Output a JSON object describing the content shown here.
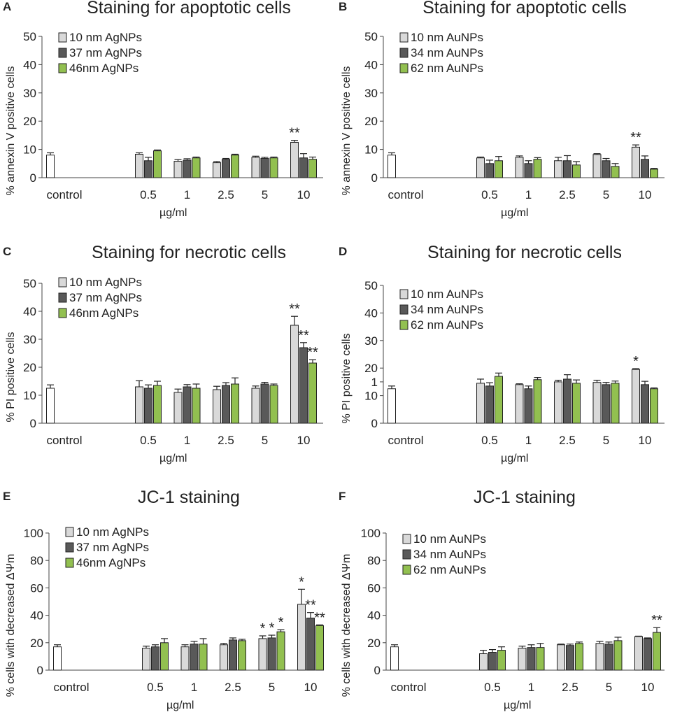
{
  "colors": {
    "control": "#ffffff",
    "series": [
      "#d9d9d9",
      "#595959",
      "#92c050"
    ],
    "outline": "#222222"
  },
  "chart_data": [
    {
      "panel": "A",
      "type": "bar",
      "title": "Staining for apoptotic cells",
      "ylabel": "% annexin V positive cells",
      "xlabel": "µg/ml",
      "ylim": [
        0,
        50
      ],
      "yticks": [
        0,
        10,
        20,
        30,
        40,
        50
      ],
      "control_label": "control",
      "control": {
        "value": 8.0,
        "err": 0.8
      },
      "categories": [
        "0.5",
        "1",
        "2.5",
        "5",
        "10"
      ],
      "legend_position": "top-left",
      "series": [
        {
          "name": "10 nm AgNPs",
          "values": [
            8.3,
            5.8,
            5.3,
            7.2,
            12.5
          ],
          "errors": [
            0.5,
            0.6,
            0.4,
            0.4,
            0.7
          ],
          "marks": [
            "",
            "",
            "",
            "",
            "**"
          ]
        },
        {
          "name": "37 nm AgNPs",
          "values": [
            6.0,
            6.2,
            6.5,
            6.8,
            7.0
          ],
          "errors": [
            1.2,
            0.5,
            0.3,
            0.4,
            1.5
          ],
          "marks": [
            "",
            "",
            "",
            "",
            ""
          ]
        },
        {
          "name": "46nm AgNPs",
          "values": [
            9.5,
            7.0,
            8.0,
            7.0,
            6.5
          ],
          "errors": [
            0.3,
            0.3,
            0.3,
            0.3,
            0.8
          ],
          "marks": [
            "",
            "",
            "",
            "",
            ""
          ]
        }
      ]
    },
    {
      "panel": "B",
      "type": "bar",
      "title": "Staining for apoptotic cells",
      "ylabel": "% annexin V positive cells",
      "xlabel": "µg/ml",
      "ylim": [
        0,
        50
      ],
      "yticks": [
        0,
        10,
        20,
        30,
        40,
        50
      ],
      "control_label": "control",
      "control": {
        "value": 8.0,
        "err": 0.8
      },
      "categories": [
        "0.5",
        "1",
        "2.5",
        "5",
        "10"
      ],
      "legend_position": "top-left",
      "series": [
        {
          "name": "10 nm AuNPs",
          "values": [
            7.0,
            7.2,
            6.0,
            8.2,
            10.8
          ],
          "errors": [
            0.3,
            0.5,
            1.2,
            0.3,
            0.8
          ],
          "marks": [
            "",
            "",
            "",
            "",
            "**"
          ]
        },
        {
          "name": "34 nm AuNPs",
          "values": [
            5.0,
            5.0,
            6.0,
            6.0,
            6.5
          ],
          "errors": [
            1.2,
            1.0,
            1.8,
            0.8,
            1.2
          ],
          "marks": [
            "",
            "",
            "",
            "",
            ""
          ]
        },
        {
          "name": "62 nm AuNPs",
          "values": [
            6.0,
            6.5,
            4.5,
            4.0,
            3.0
          ],
          "errors": [
            1.5,
            0.6,
            1.2,
            1.0,
            0.3
          ],
          "marks": [
            "",
            "",
            "",
            "",
            ""
          ]
        }
      ]
    },
    {
      "panel": "C",
      "type": "bar",
      "title": "Staining for necrotic cells",
      "ylabel": "% PI positive cells",
      "xlabel": "µg/ml",
      "ylim": [
        0,
        50
      ],
      "yticks": [
        0,
        10,
        20,
        30,
        40,
        50
      ],
      "control_label": "control",
      "control": {
        "value": 12.5,
        "err": 1.2
      },
      "categories": [
        "0.5",
        "1",
        "2.5",
        "5",
        "10"
      ],
      "legend_position": "top-left",
      "series": [
        {
          "name": "10 nm AgNPs",
          "values": [
            13.0,
            11.0,
            12.0,
            12.5,
            35.0
          ],
          "errors": [
            2.2,
            1.2,
            1.2,
            0.8,
            3.2
          ],
          "marks": [
            "",
            "",
            "",
            "",
            "**"
          ]
        },
        {
          "name": "37 nm AgNPs",
          "values": [
            12.5,
            13.0,
            13.5,
            14.0,
            27.0
          ],
          "errors": [
            1.2,
            0.8,
            1.0,
            0.6,
            1.8
          ],
          "marks": [
            "",
            "",
            "",
            "",
            "**"
          ]
        },
        {
          "name": "46nm AgNPs",
          "values": [
            13.5,
            12.5,
            14.0,
            13.5,
            21.5
          ],
          "errors": [
            1.5,
            1.5,
            2.2,
            0.5,
            1.2
          ],
          "marks": [
            "",
            "",
            "",
            "",
            "**"
          ]
        }
      ]
    },
    {
      "panel": "D",
      "type": "bar",
      "title": "Staining for necrotic cells",
      "ylabel": "% PI positive cells",
      "xlabel": "µg/ml",
      "ylim": [
        0,
        50
      ],
      "yticks": [
        0,
        10,
        20,
        30,
        40,
        50
      ],
      "ytick_labels": [
        "0",
        "10",
        "1",
        "20",
        "30",
        "40",
        "50"
      ],
      "ytick_values": [
        0,
        10,
        15,
        20,
        30,
        40,
        50
      ],
      "control_label": "control",
      "control": {
        "value": 12.5,
        "err": 1.0
      },
      "categories": [
        "0.5",
        "1",
        "2.5",
        "5",
        "10"
      ],
      "legend_position": "top-left",
      "series": [
        {
          "name": "10 nm AuNPs",
          "values": [
            14.5,
            14.0,
            15.0,
            14.8,
            19.5
          ],
          "errors": [
            1.5,
            0.3,
            0.6,
            0.8,
            0.3
          ],
          "marks": [
            "",
            "",
            "",
            "",
            "*"
          ]
        },
        {
          "name": "34 nm AuNPs",
          "values": [
            13.5,
            12.5,
            16.0,
            14.0,
            14.0
          ],
          "errors": [
            1.2,
            1.0,
            1.6,
            0.8,
            1.2
          ],
          "marks": [
            "",
            "",
            "",
            "",
            ""
          ]
        },
        {
          "name": "62 nm AuNPs",
          "values": [
            17.0,
            15.8,
            14.5,
            14.5,
            12.5
          ],
          "errors": [
            1.2,
            0.8,
            1.2,
            0.8,
            0.3
          ],
          "marks": [
            "",
            "",
            "",
            "",
            ""
          ]
        }
      ]
    },
    {
      "panel": "E",
      "type": "bar",
      "title": "JC-1 staining",
      "ylabel": "% cells with decreased ΔΨm",
      "xlabel": "µg/ml",
      "ylim": [
        0,
        100
      ],
      "yticks": [
        0,
        20,
        40,
        60,
        80,
        100
      ],
      "control_label": "control",
      "control": {
        "value": 17.0,
        "err": 1.5
      },
      "categories": [
        "0.5",
        "1",
        "2.5",
        "5",
        "10"
      ],
      "legend_position": "top-left",
      "series": [
        {
          "name": "10 nm AgNPs",
          "values": [
            16.0,
            17.0,
            18.5,
            23.0,
            48.0
          ],
          "errors": [
            1.5,
            1.5,
            1.0,
            2.0,
            11.0
          ],
          "marks": [
            "",
            "",
            "",
            "*",
            "*"
          ]
        },
        {
          "name": "37 nm AgNPs",
          "values": [
            17.0,
            19.0,
            22.0,
            23.5,
            38.0
          ],
          "errors": [
            1.5,
            2.0,
            1.5,
            2.0,
            4.0
          ],
          "marks": [
            "",
            "",
            "",
            "*",
            "**"
          ]
        },
        {
          "name": "46nm AgNPs",
          "values": [
            20.0,
            19.0,
            21.5,
            28.0,
            32.5
          ],
          "errors": [
            3.0,
            4.0,
            1.0,
            1.5,
            0.5
          ],
          "marks": [
            "",
            "",
            "",
            "*",
            "**"
          ]
        }
      ]
    },
    {
      "panel": "F",
      "type": "bar",
      "title": "JC-1 staining",
      "ylabel": "% cells with decreased ΔΨm",
      "xlabel": "µg/ml",
      "ylim": [
        0,
        100
      ],
      "yticks": [
        0,
        20,
        40,
        60,
        80,
        100
      ],
      "control_label": "control",
      "control": {
        "value": 17.0,
        "err": 1.5
      },
      "categories": [
        "0.5",
        "1",
        "2.5",
        "5",
        "10"
      ],
      "legend_position": "top-left",
      "series": [
        {
          "name": "10 nm AuNPs",
          "values": [
            12.0,
            16.0,
            18.5,
            19.5,
            24.5
          ],
          "errors": [
            2.5,
            1.5,
            0.5,
            1.5,
            0.3
          ],
          "marks": [
            "",
            "",
            "",
            "",
            ""
          ]
        },
        {
          "name": "34 nm AuNPs",
          "values": [
            13.0,
            16.5,
            18.0,
            19.0,
            23.0
          ],
          "errors": [
            2.0,
            2.0,
            1.0,
            1.5,
            0.5
          ],
          "marks": [
            "",
            "",
            "",
            "",
            ""
          ]
        },
        {
          "name": "62 nm AuNPs",
          "values": [
            14.5,
            16.5,
            19.5,
            21.5,
            27.5
          ],
          "errors": [
            2.5,
            3.0,
            1.0,
            2.5,
            3.5
          ],
          "marks": [
            "",
            "",
            "",
            "",
            "**"
          ]
        }
      ]
    }
  ]
}
